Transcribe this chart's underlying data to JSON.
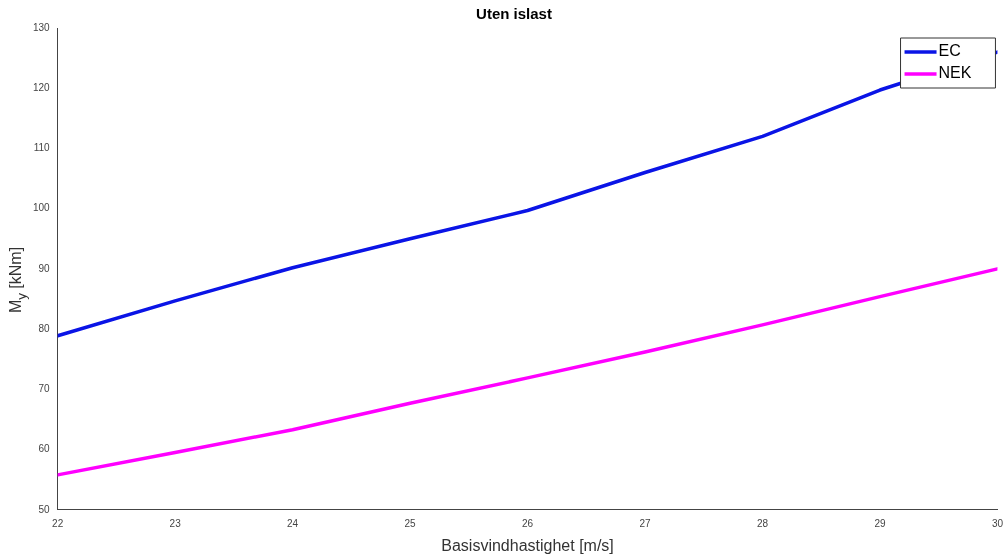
{
  "chart_data": {
    "type": "line",
    "title": "Uten islast",
    "xlabel": "Basisvindhastighet [m/s]",
    "ylabel": "M$_{y}$ [kNm]",
    "x": [
      22,
      23,
      24,
      25,
      26,
      27,
      28,
      29,
      30
    ],
    "series": [
      {
        "name": "EC",
        "color": "#0a14e6",
        "values": [
          78.9,
          84.7,
          90.2,
          95,
          99.7,
          106,
          112,
          119.7,
          126
        ]
      },
      {
        "name": "NEK",
        "color": "#ff00ff",
        "values": [
          55.8,
          59.5,
          63.3,
          67.7,
          71.9,
          76.2,
          80.7,
          85.4,
          90
        ]
      }
    ],
    "xlim": [
      22,
      30
    ],
    "xticks": [
      22,
      23,
      24,
      25,
      26,
      27,
      28,
      29,
      30
    ],
    "ylim": [
      50,
      130
    ],
    "yticks": [
      50,
      60,
      70,
      80,
      90,
      100,
      110,
      120,
      130
    ],
    "grid": false,
    "legend": "top right",
    "marker": "none",
    "line_style": "solid"
  }
}
